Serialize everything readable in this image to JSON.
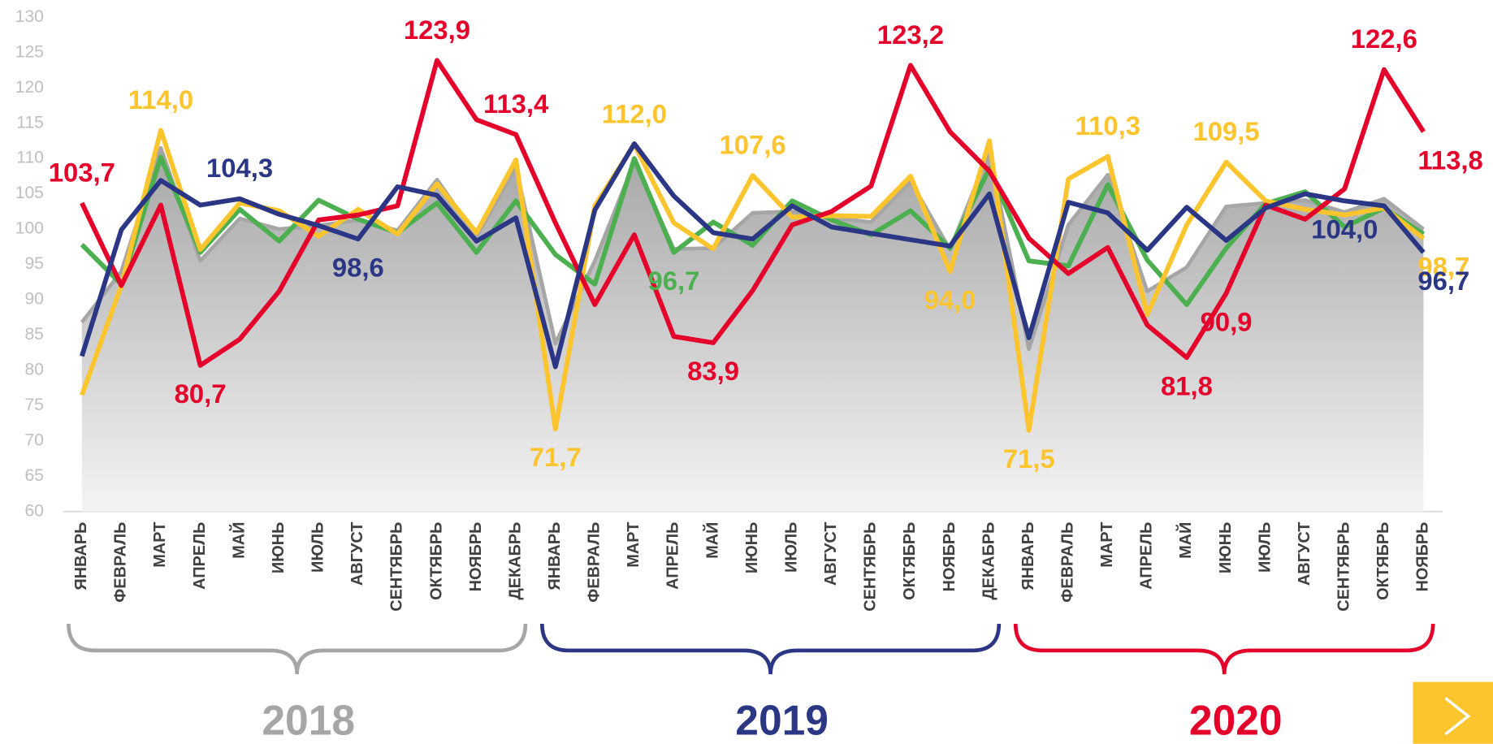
{
  "chart_data": {
    "type": "line",
    "categories": [
      "ЯНВАРЬ",
      "ФЕВРАЛЬ",
      "МАРТ",
      "АПРЕЛЬ",
      "МАЙ",
      "ИЮНЬ",
      "ИЮЛЬ",
      "АВГУСТ",
      "СЕНТЯБРЬ",
      "ОКТЯБРЬ",
      "НОЯБРЬ",
      "ДЕКАБРЬ",
      "ЯНВАРЬ",
      "ФЕВРАЛЬ",
      "МАРТ",
      "АПРЕЛЬ",
      "МАЙ",
      "ИЮНЬ",
      "ИЮЛЬ",
      "АВГУСТ",
      "СЕНТЯБРЬ",
      "ОКТЯБРЬ",
      "НОЯБРЬ",
      "ДЕКАБРЬ",
      "ЯНВАРЬ",
      "ФЕВРАЛЬ",
      "МАРТ",
      "АПРЕЛЬ",
      "МАЙ",
      "ИЮНЬ",
      "ИЮЛЬ",
      "АВГУСТ",
      "СЕНТЯБРЬ",
      "ОКТЯБРЬ",
      "НОЯБРЬ"
    ],
    "ylim": [
      60,
      130
    ],
    "yticks": [
      60,
      65,
      70,
      75,
      80,
      85,
      90,
      95,
      100,
      105,
      110,
      115,
      120,
      125,
      130
    ],
    "groups": [
      {
        "label": "2018",
        "color": "#a6a6a6",
        "count": 12
      },
      {
        "label": "2019",
        "color": "#2b3784",
        "count": 12
      },
      {
        "label": "2020",
        "color": "#e4002b",
        "count": 11
      }
    ],
    "series": [
      {
        "color": "#a6a6a6",
        "style": "area",
        "values": [
          86.8,
          94.0,
          111.5,
          95.5,
          101.5,
          100.0,
          100.5,
          101.3,
          99.8,
          107.0,
          99.0,
          108.7,
          83.8,
          95.5,
          109.5,
          97.2,
          97.3,
          102.3,
          102.5,
          101.6,
          101.0,
          106.8,
          97.1,
          111.0,
          83.0,
          100.6,
          107.7,
          91.2,
          94.6,
          103.2,
          103.7,
          104.1,
          102.4,
          104.3,
          100.0
        ]
      },
      {
        "color": "#4caf50",
        "values": [
          97.8,
          92.2,
          110.2,
          96.7,
          102.8,
          98.3,
          104.1,
          101.4,
          99.5,
          103.7,
          96.7,
          104.0,
          96.4,
          92.2,
          110.0,
          96.7,
          101.0,
          97.7,
          104.0,
          101.3,
          99.2,
          102.6,
          97.3,
          108.6,
          95.5,
          94.8,
          106.3,
          95.6,
          89.3,
          97.3,
          103.6,
          105.3,
          100.3,
          103.0,
          99.3
        ],
        "value_labels": [
          null,
          null,
          null,
          null,
          null,
          null,
          null,
          null,
          null,
          null,
          null,
          null,
          null,
          null,
          null,
          "96,7",
          null,
          null,
          null,
          null,
          null,
          null,
          null,
          null,
          null,
          null,
          null,
          null,
          null,
          null,
          null,
          null,
          null,
          null,
          null
        ]
      },
      {
        "color": "#fcc42d",
        "values": [
          76.5,
          92.0,
          114.0,
          97.1,
          103.7,
          102.6,
          99.0,
          102.8,
          99.3,
          106.4,
          99.5,
          109.8,
          71.7,
          103.3,
          112.0,
          100.9,
          97.2,
          107.6,
          101.7,
          101.9,
          101.8,
          107.5,
          94.0,
          112.5,
          71.5,
          107.1,
          110.3,
          87.9,
          100.6,
          109.5,
          104.0,
          102.8,
          102.0,
          103.0,
          98.7
        ],
        "value_labels": [
          null,
          null,
          "114,0",
          null,
          null,
          null,
          null,
          null,
          null,
          null,
          null,
          null,
          "71,7",
          null,
          "112,0",
          null,
          null,
          "107,6",
          null,
          null,
          null,
          null,
          "94,0",
          null,
          "71,5",
          null,
          "110,3",
          null,
          null,
          "109,5",
          null,
          null,
          null,
          null,
          "98,7"
        ]
      },
      {
        "color": "#e4002b",
        "values": [
          103.7,
          92.0,
          103.4,
          80.7,
          84.4,
          91.2,
          101.3,
          102.0,
          103.3,
          123.9,
          115.5,
          113.4,
          100.9,
          89.3,
          99.2,
          84.8,
          83.9,
          91.3,
          100.6,
          102.5,
          106.1,
          123.2,
          113.8,
          108.2,
          98.7,
          93.7,
          97.4,
          86.4,
          81.8,
          90.9,
          103.4,
          101.4,
          105.7,
          122.6,
          113.8
        ],
        "value_labels": [
          "103,7",
          null,
          null,
          "80,7",
          null,
          null,
          null,
          null,
          null,
          "123,9",
          null,
          "113,4",
          null,
          null,
          null,
          null,
          "83,9",
          null,
          null,
          null,
          null,
          "123,2",
          null,
          null,
          null,
          null,
          null,
          null,
          "81,8",
          "90,9",
          null,
          null,
          null,
          "122,6",
          "113,8"
        ]
      },
      {
        "color": "#2b3784",
        "values": [
          82.0,
          99.9,
          106.9,
          103.4,
          104.3,
          102.1,
          100.5,
          98.6,
          106.0,
          104.8,
          98.3,
          101.6,
          80.5,
          102.7,
          112.1,
          104.7,
          99.5,
          98.6,
          103.3,
          100.3,
          99.4,
          98.5,
          97.6,
          105.0,
          84.6,
          103.8,
          102.3,
          97.0,
          103.1,
          98.4,
          103.0,
          105.0,
          104.0,
          103.3,
          96.7
        ],
        "value_labels": [
          null,
          null,
          null,
          null,
          "104,3",
          null,
          null,
          "98,6",
          null,
          null,
          null,
          null,
          null,
          null,
          null,
          null,
          null,
          null,
          null,
          null,
          null,
          null,
          null,
          null,
          null,
          null,
          null,
          null,
          null,
          null,
          null,
          null,
          "104,0",
          null,
          "96,7"
        ]
      }
    ]
  }
}
